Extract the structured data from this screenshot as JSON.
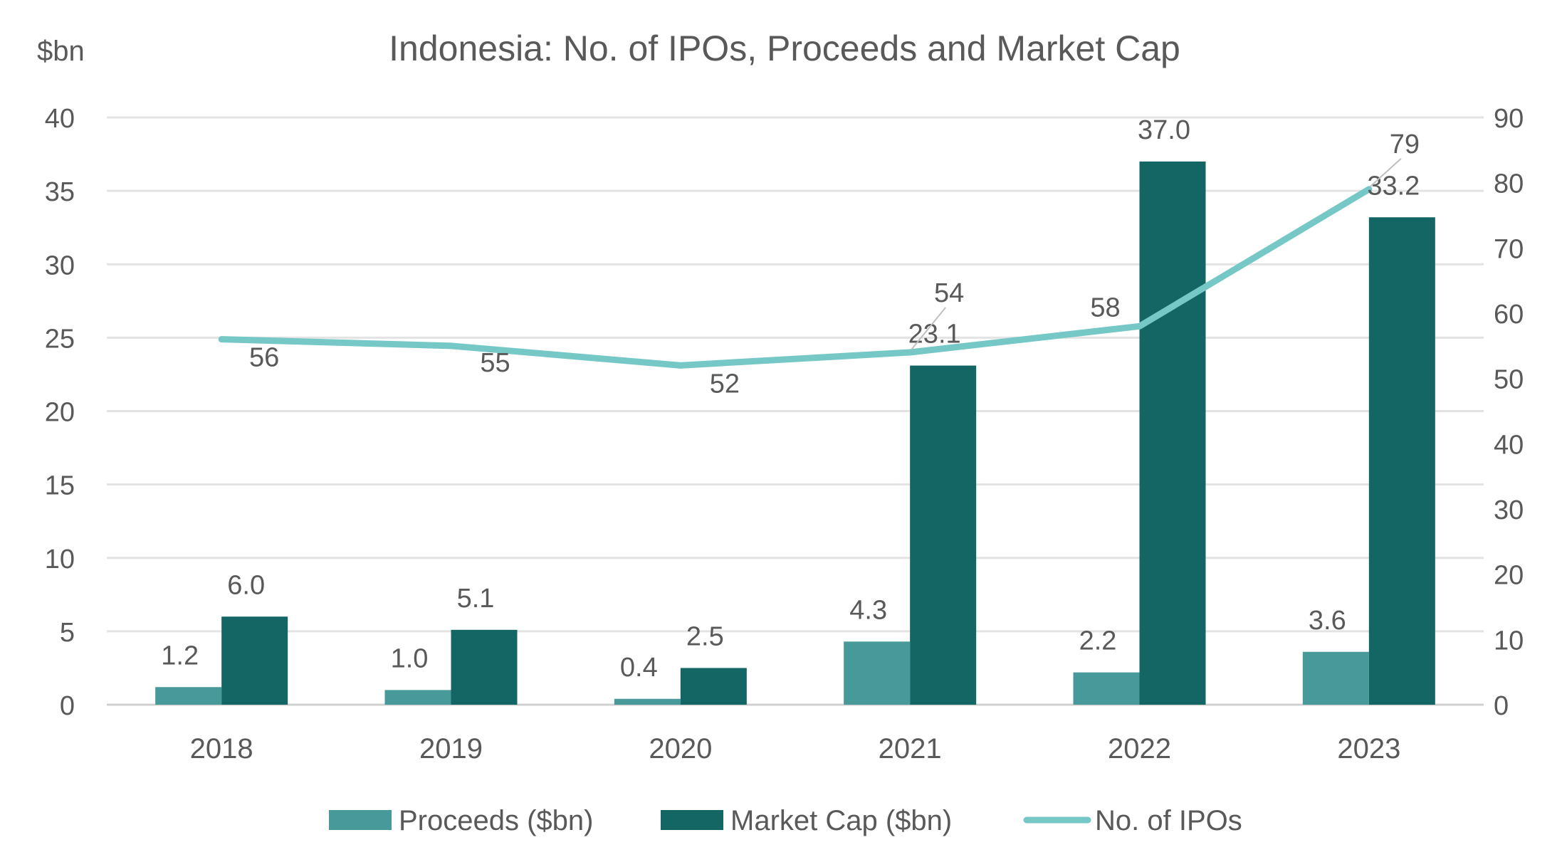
{
  "chart_data": {
    "type": "bar+line",
    "title": "Indonesia: No. of IPOs, Proceeds and Market Cap",
    "ylabel": "$bn",
    "categories": [
      "2018",
      "2019",
      "2020",
      "2021",
      "2022",
      "2023"
    ],
    "y_left": {
      "ylim": [
        0,
        40
      ],
      "ticks": [
        0,
        5,
        10,
        15,
        20,
        25,
        30,
        35,
        40
      ]
    },
    "y_right": {
      "ylim": [
        0,
        90
      ],
      "ticks": [
        0,
        10,
        20,
        30,
        40,
        50,
        60,
        70,
        80,
        90
      ]
    },
    "grid": true,
    "legend_placement": "bottom",
    "series": [
      {
        "name": "Proceeds ($bn)",
        "kind": "bar",
        "axis": "left",
        "color": "#47999A",
        "values": [
          1.2,
          1.0,
          0.4,
          4.3,
          2.2,
          3.6
        ],
        "labels": [
          "1.2",
          "1.0",
          "0.4",
          "4.3",
          "2.2",
          "3.6"
        ]
      },
      {
        "name": "Market Cap ($bn)",
        "kind": "bar",
        "axis": "left",
        "color": "#146664",
        "values": [
          6.0,
          5.1,
          2.5,
          23.1,
          37.0,
          33.2
        ],
        "labels": [
          "6.0",
          "5.1",
          "2.5",
          "23.1",
          "37.0",
          "33.2"
        ]
      },
      {
        "name": "No. of IPOs",
        "kind": "line",
        "axis": "right",
        "color": "#76C8C6",
        "values": [
          56,
          55,
          52,
          54,
          58,
          79
        ],
        "labels": [
          "56",
          "55",
          "52",
          "54",
          "58",
          "79"
        ]
      }
    ]
  }
}
